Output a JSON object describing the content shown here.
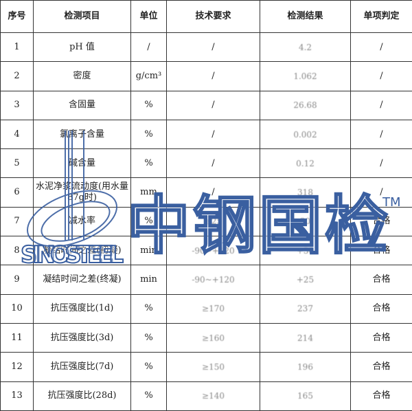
{
  "headers": [
    "序号",
    "检测项目",
    "单位",
    "技术要求",
    "检测结果",
    "单项判定"
  ],
  "rows": [
    {
      "no": "1",
      "item": "pH 值",
      "unit": "/",
      "req": "/",
      "result": "4.2",
      "verdict": "/"
    },
    {
      "no": "2",
      "item": "密度",
      "unit": "g/cm³",
      "req": "/",
      "result": "1.062",
      "verdict": "/"
    },
    {
      "no": "3",
      "item": "含固量",
      "unit": "%",
      "req": "/",
      "result": "26.68",
      "verdict": "/"
    },
    {
      "no": "4",
      "item": "氯离子含量",
      "unit": "%",
      "req": "/",
      "result": "0.002",
      "verdict": "/"
    },
    {
      "no": "5",
      "item": "碱含量",
      "unit": "%",
      "req": "/",
      "result": "0.12",
      "verdict": "/"
    },
    {
      "no": "6",
      "item": "水泥净浆流动度(用水量87g时)",
      "unit": "mm",
      "req": "/",
      "result": "318",
      "verdict": "/"
    },
    {
      "no": "7",
      "item": "减水率",
      "unit": "%",
      "req": "≥25",
      "result": "30",
      "verdict": "合格"
    },
    {
      "no": "8",
      "item": "凝结时间之差(初凝)",
      "unit": "min",
      "req": "-90~+120",
      "result": "+30",
      "verdict": "合格"
    },
    {
      "no": "9",
      "item": "凝结时间之差(终凝)",
      "unit": "min",
      "req": "-90~+120",
      "result": "+25",
      "verdict": "合格"
    },
    {
      "no": "10",
      "item": "抗压强度比(1d)",
      "unit": "%",
      "req": "≥170",
      "result": "237",
      "verdict": "合格"
    },
    {
      "no": "11",
      "item": "抗压强度比(3d)",
      "unit": "%",
      "req": "≥160",
      "result": "214",
      "verdict": "合格"
    },
    {
      "no": "12",
      "item": "抗压强度比(7d)",
      "unit": "%",
      "req": "≥150",
      "result": "196",
      "verdict": "合格"
    },
    {
      "no": "13",
      "item": "抗压强度比(28d)",
      "unit": "%",
      "req": "≥140",
      "result": "165",
      "verdict": "合格"
    }
  ],
  "watermark": {
    "brand_cn": "中钢国检",
    "brand_en": "SINOSTEEL",
    "tm": "TM",
    "color": "#3a5fa0"
  }
}
